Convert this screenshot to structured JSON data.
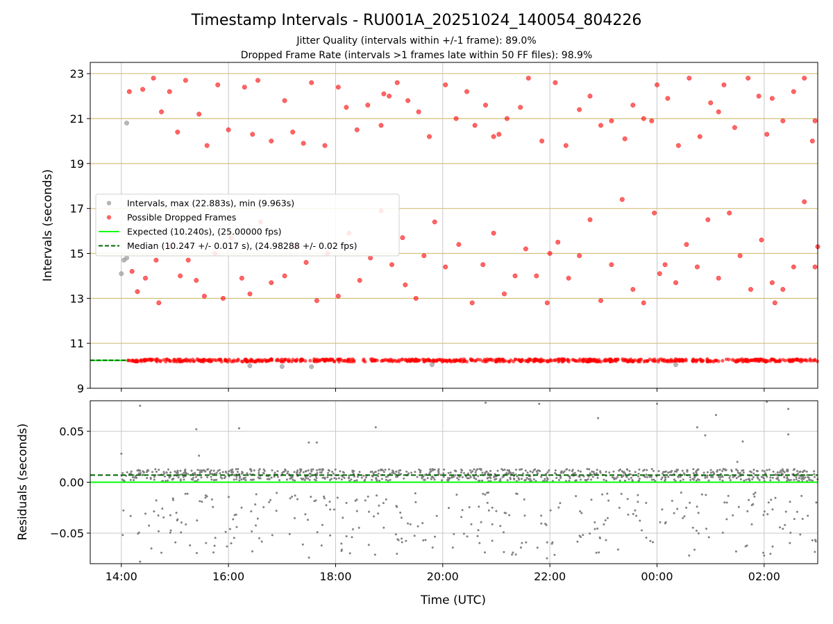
{
  "title": "Timestamp Intervals - RU001A_20251024_140054_804226",
  "subtitle_1": "Jitter Quality (intervals within +/-1 frame): 89.0%",
  "subtitle_2": "Dropped Frame Rate (intervals >1 frames late within 50 FF files): 98.9%",
  "colors": {
    "grid": "#c8c8c8",
    "yellow_grid": "#d4c07a",
    "points": "#a0a0a0",
    "dropped": "#ff0000",
    "expected": "#00ff00",
    "median": "#006400",
    "residual": "#808080"
  },
  "chart_data": [
    {
      "type": "scatter",
      "name": "intervals",
      "title": "",
      "xlabel": "",
      "ylabel": "Intervals (seconds)",
      "xlim": [
        13.42,
        27.0
      ],
      "ylim": [
        9.0,
        23.5
      ],
      "x_ticks": [
        14,
        16,
        18,
        20,
        22,
        24,
        26
      ],
      "x_tick_labels": [
        "14:00",
        "16:00",
        "18:00",
        "20:00",
        "22:00",
        "00:00",
        "02:00"
      ],
      "yticks": [
        9,
        11,
        13,
        15,
        17,
        19,
        21,
        23
      ],
      "ytick_labels": [
        "9",
        "11",
        "13",
        "15",
        "17",
        "19",
        "21",
        "23"
      ],
      "yellow_gridlines": [
        11,
        13,
        15,
        17,
        19,
        21,
        23
      ],
      "legend": {
        "position": "center-left",
        "entries": [
          {
            "label": "Intervals, max (22.883s), min (9.963s)",
            "kind": "dot-gray"
          },
          {
            "label": "Possible Dropped Frames",
            "kind": "dot-red"
          },
          {
            "label": "Expected (10.240s), (25.00000 fps)",
            "kind": "line-green"
          },
          {
            "label": "Median (10.247 +/- 0.017 s), (24.98288 +/- 0.02 fps)",
            "kind": "dash-darkgreen"
          }
        ]
      },
      "expected": 10.24,
      "median": 10.247,
      "series": [
        {
          "name": "Possible Dropped Frames (upper band)",
          "points": [
            [
              14.15,
              22.2
            ],
            [
              14.4,
              22.3
            ],
            [
              14.6,
              22.8
            ],
            [
              14.75,
              21.3
            ],
            [
              14.9,
              22.2
            ],
            [
              15.05,
              20.4
            ],
            [
              15.2,
              22.7
            ],
            [
              15.45,
              21.2
            ],
            [
              15.6,
              19.8
            ],
            [
              15.8,
              22.5
            ],
            [
              16.3,
              22.4
            ],
            [
              16.45,
              20.3
            ],
            [
              16.55,
              22.7
            ],
            [
              16.8,
              20.0
            ],
            [
              17.05,
              21.8
            ],
            [
              17.2,
              20.4
            ],
            [
              17.4,
              19.9
            ],
            [
              17.55,
              22.6
            ],
            [
              17.8,
              19.8
            ],
            [
              18.05,
              22.4
            ],
            [
              18.2,
              21.5
            ],
            [
              18.4,
              20.5
            ],
            [
              18.6,
              21.6
            ],
            [
              18.85,
              20.7
            ],
            [
              19.0,
              22.0
            ],
            [
              19.15,
              22.6
            ],
            [
              19.35,
              21.8
            ],
            [
              19.55,
              21.3
            ],
            [
              19.75,
              20.2
            ],
            [
              20.05,
              22.5
            ],
            [
              20.25,
              21.0
            ],
            [
              20.45,
              22.2
            ],
            [
              20.6,
              20.7
            ],
            [
              20.8,
              21.6
            ],
            [
              20.95,
              20.2
            ],
            [
              21.2,
              21.0
            ],
            [
              21.45,
              21.5
            ],
            [
              21.6,
              22.8
            ],
            [
              21.85,
              20.0
            ],
            [
              22.1,
              22.6
            ],
            [
              22.3,
              19.8
            ],
            [
              22.55,
              21.4
            ],
            [
              22.75,
              22.0
            ],
            [
              22.95,
              20.7
            ],
            [
              23.15,
              20.9
            ],
            [
              23.4,
              20.1
            ],
            [
              23.55,
              21.6
            ],
            [
              23.75,
              21.0
            ],
            [
              24.0,
              22.5
            ],
            [
              24.2,
              21.9
            ],
            [
              24.4,
              19.8
            ],
            [
              24.6,
              22.8
            ],
            [
              24.8,
              20.2
            ],
            [
              25.0,
              21.7
            ],
            [
              25.25,
              22.5
            ],
            [
              25.45,
              20.6
            ],
            [
              25.7,
              22.8
            ],
            [
              25.9,
              22.0
            ],
            [
              26.15,
              21.9
            ],
            [
              26.35,
              20.9
            ],
            [
              26.55,
              22.2
            ],
            [
              26.75,
              22.8
            ],
            [
              26.9,
              20.0
            ],
            [
              16.0,
              20.5
            ],
            [
              18.9,
              22.1
            ],
            [
              21.05,
              20.3
            ],
            [
              23.9,
              20.9
            ],
            [
              25.15,
              21.3
            ],
            [
              26.05,
              20.3
            ],
            [
              26.95,
              20.9
            ]
          ]
        },
        {
          "name": "Possible Dropped Frames (lower band)",
          "points": [
            [
              14.2,
              14.2
            ],
            [
              14.3,
              13.3
            ],
            [
              14.45,
              13.9
            ],
            [
              14.65,
              14.7
            ],
            [
              14.7,
              12.8
            ],
            [
              14.9,
              15.3
            ],
            [
              15.1,
              14.0
            ],
            [
              15.25,
              14.7
            ],
            [
              15.4,
              13.8
            ],
            [
              15.55,
              13.1
            ],
            [
              15.75,
              15.0
            ],
            [
              15.9,
              13.0
            ],
            [
              16.05,
              15.7
            ],
            [
              16.25,
              13.9
            ],
            [
              16.4,
              13.2
            ],
            [
              16.6,
              16.4
            ],
            [
              16.8,
              13.7
            ],
            [
              17.05,
              14.0
            ],
            [
              17.25,
              15.3
            ],
            [
              17.45,
              14.6
            ],
            [
              17.65,
              12.9
            ],
            [
              17.85,
              15.0
            ],
            [
              18.05,
              13.1
            ],
            [
              18.25,
              15.9
            ],
            [
              18.45,
              13.8
            ],
            [
              18.65,
              14.8
            ],
            [
              18.85,
              16.9
            ],
            [
              19.05,
              14.5
            ],
            [
              19.25,
              15.7
            ],
            [
              19.5,
              13.0
            ],
            [
              19.65,
              14.9
            ],
            [
              19.85,
              16.4
            ],
            [
              20.05,
              14.4
            ],
            [
              20.3,
              15.4
            ],
            [
              20.55,
              12.8
            ],
            [
              20.75,
              14.5
            ],
            [
              20.95,
              15.9
            ],
            [
              21.15,
              13.2
            ],
            [
              21.35,
              14.0
            ],
            [
              21.55,
              15.2
            ],
            [
              21.75,
              14.0
            ],
            [
              21.95,
              12.8
            ],
            [
              22.15,
              15.5
            ],
            [
              22.35,
              13.9
            ],
            [
              22.55,
              14.9
            ],
            [
              22.75,
              16.5
            ],
            [
              22.95,
              12.9
            ],
            [
              23.15,
              14.5
            ],
            [
              23.35,
              17.4
            ],
            [
              23.55,
              13.4
            ],
            [
              23.75,
              12.8
            ],
            [
              23.95,
              16.8
            ],
            [
              24.15,
              14.5
            ],
            [
              24.35,
              13.7
            ],
            [
              24.55,
              15.4
            ],
            [
              24.75,
              14.4
            ],
            [
              24.95,
              16.5
            ],
            [
              25.15,
              13.9
            ],
            [
              25.35,
              16.8
            ],
            [
              25.55,
              14.9
            ],
            [
              25.75,
              13.4
            ],
            [
              25.95,
              15.6
            ],
            [
              26.15,
              13.7
            ],
            [
              26.35,
              13.4
            ],
            [
              26.55,
              14.4
            ],
            [
              26.75,
              17.3
            ],
            [
              26.95,
              14.4
            ],
            [
              19.3,
              13.6
            ],
            [
              22.0,
              15.0
            ],
            [
              24.05,
              14.1
            ],
            [
              26.2,
              12.8
            ],
            [
              27.0,
              15.3
            ]
          ]
        },
        {
          "name": "Intervals (gray)",
          "points": [
            [
              14.0,
              14.1
            ],
            [
              14.05,
              14.7
            ],
            [
              14.1,
              14.8
            ],
            [
              14.1,
              20.8
            ],
            [
              16.4,
              10.0
            ],
            [
              17.0,
              9.97
            ],
            [
              17.55,
              9.96
            ],
            [
              19.8,
              10.05
            ],
            [
              24.35,
              10.05
            ]
          ]
        }
      ]
    },
    {
      "type": "scatter",
      "name": "residuals",
      "title": "",
      "xlabel": "Time (UTC)",
      "ylabel": "Residuals (seconds)",
      "xlim": [
        13.42,
        27.0
      ],
      "ylim": [
        -0.08,
        0.08
      ],
      "x_ticks": [
        14,
        16,
        18,
        20,
        22,
        24,
        26
      ],
      "x_tick_labels": [
        "14:00",
        "16:00",
        "18:00",
        "20:00",
        "22:00",
        "00:00",
        "02:00"
      ],
      "yticks": [
        0.05,
        0.0,
        -0.05
      ],
      "ytick_labels": [
        "0.05",
        "0.00",
        "−0.05"
      ],
      "expected": 0.0,
      "median": 0.007,
      "band": {
        "center": 0.007,
        "spread": 0.006,
        "count": 900
      },
      "scatter_low": {
        "min": -0.075,
        "max": -0.01,
        "count": 300
      },
      "outliers": [
        [
          14.0,
          0.028
        ],
        [
          14.35,
          0.075
        ],
        [
          14.35,
          -0.078
        ],
        [
          15.4,
          0.052
        ],
        [
          15.45,
          0.026
        ],
        [
          16.2,
          0.053
        ],
        [
          16.05,
          -0.06
        ],
        [
          17.5,
          0.039
        ],
        [
          17.65,
          0.039
        ],
        [
          18.75,
          0.054
        ],
        [
          20.65,
          -0.053
        ],
        [
          20.8,
          0.078
        ],
        [
          21.8,
          0.077
        ],
        [
          22.9,
          0.063
        ],
        [
          24.0,
          0.077
        ],
        [
          24.6,
          -0.072
        ],
        [
          24.75,
          0.054
        ],
        [
          24.9,
          0.046
        ],
        [
          25.1,
          0.066
        ],
        [
          25.5,
          0.02
        ],
        [
          25.6,
          0.04
        ],
        [
          26.0,
          -0.072
        ],
        [
          26.05,
          0.079
        ],
        [
          26.45,
          0.072
        ],
        [
          26.45,
          0.047
        ],
        [
          26.9,
          -0.057
        ]
      ]
    }
  ]
}
